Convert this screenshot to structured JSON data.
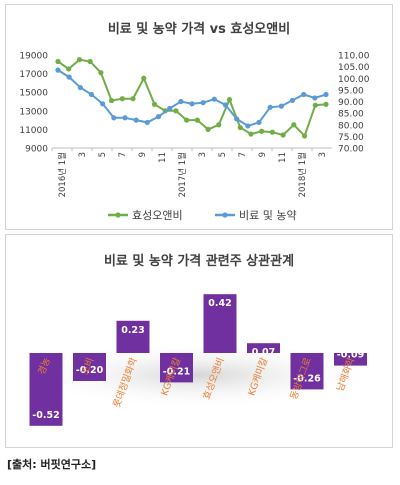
{
  "chart_data": [
    {
      "type": "line",
      "title": "비료 및 농약 가격 vs 효성오앤비",
      "x_tick_labels": [
        "2016년 1월",
        "3",
        "5",
        "7",
        "9",
        "11",
        "2017년 1월",
        "3",
        "5",
        "7",
        "9",
        "11",
        "2018년 1월",
        "3"
      ],
      "y_left": {
        "ticks": [
          "19000",
          "17000",
          "15000",
          "13000",
          "11000",
          "9000"
        ],
        "ylim": [
          9000,
          19000
        ]
      },
      "y_right": {
        "ticks": [
          "110.00",
          "105.00",
          "100.00",
          "95.00",
          "90.00",
          "85.00",
          "80.00",
          "75.00",
          "70.00"
        ],
        "ylim": [
          70,
          110
        ]
      },
      "series": [
        {
          "name": "효성오앤비",
          "axis": "left",
          "color": "#70ad47",
          "values": [
            18300,
            17500,
            18500,
            18300,
            17100,
            14100,
            14300,
            14300,
            16500,
            13700,
            13000,
            13000,
            12000,
            12000,
            11000,
            11500,
            14200,
            11200,
            10500,
            10800,
            10700,
            10400,
            11500,
            10300,
            13600,
            13700
          ]
        },
        {
          "name": "비료 및 농약",
          "axis": "right",
          "color": "#5b9bd5",
          "values": [
            103.5,
            100.5,
            96.0,
            93.0,
            89.0,
            83.0,
            83.0,
            82.0,
            81.0,
            83.5,
            87.0,
            90.0,
            89.0,
            89.5,
            91.0,
            88.5,
            82.5,
            79.5,
            81.0,
            87.5,
            88.0,
            90.5,
            93.0,
            91.5,
            93.0
          ]
        }
      ]
    },
    {
      "type": "bar",
      "title": "비료 및 농약 가격 관련주 상관관계",
      "categories": [
        "경농",
        "조비",
        "롯데정밀화학",
        "KG케미칼",
        "효성오앤비",
        "KG케미칼",
        "동방아그로",
        "남해화학"
      ],
      "values": [
        -0.52,
        -0.2,
        0.23,
        -0.21,
        0.42,
        0.07,
        -0.26,
        -0.09
      ],
      "value_labels": [
        "-0.52",
        "-0.20",
        "0.23",
        "-0.21",
        "0.42",
        "0.07",
        "-0.26",
        "-0.09"
      ],
      "bar_color": "#7030a0",
      "category_label_color": "#ed7d31"
    }
  ],
  "source": "[출처: 버핏연구소]"
}
